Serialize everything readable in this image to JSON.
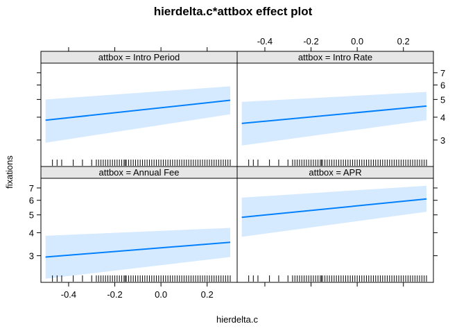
{
  "chart_data": {
    "type": "line",
    "title": "hierdelta.c*attbox effect plot",
    "xlabel": "hierdelta.c",
    "ylabel": "fixations",
    "xlim": [
      -0.52,
      0.33
    ],
    "ylim": [
      2.15,
      7.9
    ],
    "x_ticks": [
      -0.4,
      -0.2,
      0.0,
      0.2
    ],
    "x_tick_labels": [
      "-0.4",
      "-0.2",
      "0.0",
      "0.2"
    ],
    "y_ticks": [
      3,
      4,
      5,
      6,
      7
    ],
    "y_tick_labels": [
      "3",
      "4",
      "5",
      "6",
      "7"
    ],
    "y_scale": "log",
    "layout": "2x2 panels",
    "colors": {
      "line": "#0080ff",
      "band": "#d6eaff",
      "strip": "#e6e6e6"
    },
    "panels": [
      {
        "strip_label": "attbox = Intro Period",
        "x": [
          -0.5,
          0.3
        ],
        "fit": [
          3.85,
          4.95
        ],
        "lower": [
          2.9,
          4.15
        ],
        "upper": [
          5.0,
          5.9
        ]
      },
      {
        "strip_label": "attbox = Intro Rate",
        "x": [
          -0.5,
          0.3
        ],
        "fit": [
          3.7,
          4.6
        ],
        "lower": [
          2.8,
          3.85
        ],
        "upper": [
          4.85,
          5.5
        ]
      },
      {
        "strip_label": "attbox = Annual Fee",
        "x": [
          -0.5,
          0.3
        ],
        "fit": [
          2.95,
          3.55
        ],
        "lower": [
          2.25,
          2.95
        ],
        "upper": [
          3.85,
          4.25
        ]
      },
      {
        "strip_label": "attbox = APR",
        "x": [
          -0.5,
          0.3
        ],
        "fit": [
          4.85,
          6.1
        ],
        "lower": [
          3.8,
          5.2
        ],
        "upper": [
          6.2,
          7.2
        ]
      }
    ],
    "rug_x": [
      -0.47,
      -0.45,
      -0.43,
      -0.38,
      -0.34,
      -0.3,
      -0.28,
      -0.27,
      -0.26,
      -0.25,
      -0.24,
      -0.23,
      -0.22,
      -0.21,
      -0.2,
      -0.19,
      -0.18,
      -0.17,
      -0.16,
      -0.155,
      -0.15,
      -0.14,
      -0.13,
      -0.12,
      -0.11,
      -0.1,
      -0.09,
      -0.08,
      -0.07,
      -0.06,
      -0.05,
      -0.04,
      -0.03,
      -0.02,
      -0.01,
      0.0,
      0.01,
      0.02,
      0.03,
      0.04,
      0.05,
      0.06,
      0.07,
      0.08,
      0.09,
      0.1,
      0.11,
      0.12,
      0.13,
      0.14,
      0.15,
      0.16,
      0.17,
      0.18,
      0.19,
      0.2,
      0.21,
      0.22,
      0.23,
      0.24,
      0.25,
      0.26,
      0.27,
      0.28,
      0.29,
      0.3
    ]
  }
}
